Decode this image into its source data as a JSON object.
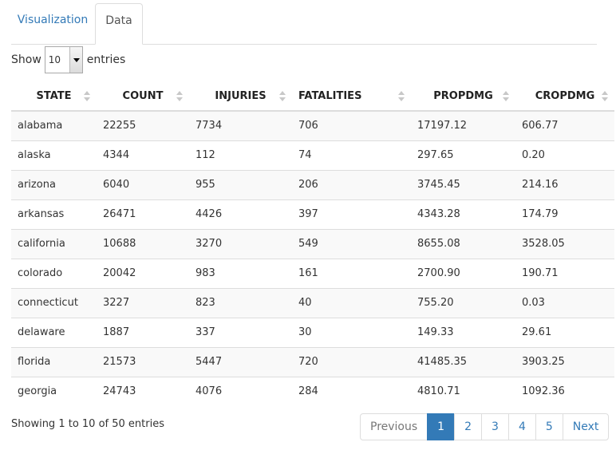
{
  "tabs": [
    {
      "label": "Visualization"
    },
    {
      "label": "Data"
    }
  ],
  "length": {
    "prefix": "Show",
    "value": "10",
    "suffix": "entries"
  },
  "table": {
    "columns": [
      "STATE",
      "COUNT",
      "INJURIES",
      "FATALITIES",
      "PROPDMG",
      "CROPDMG"
    ],
    "rows": [
      [
        "alabama",
        "22255",
        "7734",
        "706",
        "17197.12",
        "606.77"
      ],
      [
        "alaska",
        "4344",
        "112",
        "74",
        "297.65",
        "0.20"
      ],
      [
        "arizona",
        "6040",
        "955",
        "206",
        "3745.45",
        "214.16"
      ],
      [
        "arkansas",
        "26471",
        "4426",
        "397",
        "4343.28",
        "174.79"
      ],
      [
        "california",
        "10688",
        "3270",
        "549",
        "8655.08",
        "3528.05"
      ],
      [
        "colorado",
        "20042",
        "983",
        "161",
        "2700.90",
        "190.71"
      ],
      [
        "connecticut",
        "3227",
        "823",
        "40",
        "755.20",
        "0.03"
      ],
      [
        "delaware",
        "1887",
        "337",
        "30",
        "149.33",
        "29.61"
      ],
      [
        "florida",
        "21573",
        "5447",
        "720",
        "41485.35",
        "3903.25"
      ],
      [
        "georgia",
        "24743",
        "4076",
        "284",
        "4810.71",
        "1092.36"
      ]
    ]
  },
  "info": "Showing 1 to 10 of 50 entries",
  "pagination": {
    "previous": "Previous",
    "pages": [
      "1",
      "2",
      "3",
      "4",
      "5"
    ],
    "next": "Next",
    "active_page": "1"
  }
}
